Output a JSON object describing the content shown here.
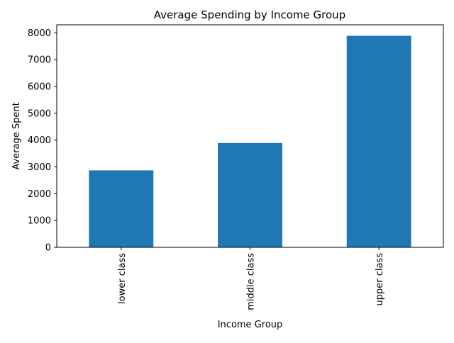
{
  "chart_data": {
    "type": "bar",
    "title": "Average Spending by Income Group",
    "xlabel": "Income Group",
    "ylabel": "Average Spent",
    "categories": [
      "lower class",
      "middle class",
      "upper class"
    ],
    "values": [
      2870,
      3890,
      7890
    ],
    "ylim": [
      0,
      8300
    ],
    "yticks": [
      0,
      1000,
      2000,
      3000,
      4000,
      5000,
      6000,
      7000,
      8000
    ],
    "grid": false,
    "bar_color": "#1f77b4"
  }
}
